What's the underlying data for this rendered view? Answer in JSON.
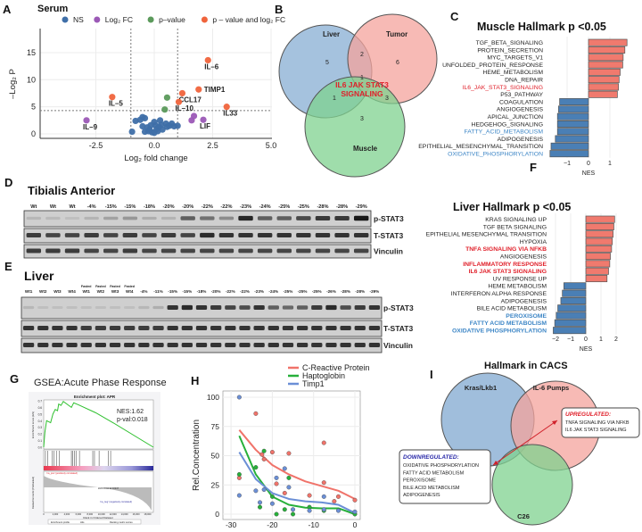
{
  "panels": {
    "A": "A",
    "B": "B",
    "C": "C",
    "D": "D",
    "E": "E",
    "F": "F",
    "G": "G",
    "H": "H",
    "I": "I"
  },
  "colors": {
    "ns": "#3f6fa8",
    "log2fc": "#9b59b6",
    "pvalue": "#5b9a5b",
    "both": "#f0643c",
    "up": "#f07a6e",
    "down": "#4a7fb5",
    "red_text": "#e0202a",
    "blue_text": "#3d86c6"
  },
  "chart_data": [
    {
      "id": "A",
      "type": "scatter",
      "title": "Serum",
      "xlabel": "Log₂ fold change",
      "ylabel": "–Log₂ P",
      "xlim": [
        -4.2,
        5.0
      ],
      "ylim": [
        -0.5,
        19
      ],
      "xticks": [
        "-2.5",
        "0.0",
        "2.5",
        "5.0"
      ],
      "xtick_values": [
        -2.5,
        0,
        2.5,
        5
      ],
      "yticks": [
        "0",
        "5",
        "10",
        "15"
      ],
      "ytick_values": [
        0,
        5,
        10,
        15
      ],
      "thresholds": {
        "x": [
          -1,
          1
        ],
        "y": 4.3
      },
      "legend": [
        {
          "key": "ns",
          "label": "NS"
        },
        {
          "key": "log2fc",
          "label": "Log₂ FC"
        },
        {
          "key": "pvalue",
          "label": "p–value"
        },
        {
          "key": "both",
          "label": "p – value and log₂ FC"
        }
      ],
      "points": [
        {
          "x": 2.3,
          "y": 13.6,
          "g": "both",
          "label": "IL–6"
        },
        {
          "x": 1.9,
          "y": 8.2,
          "g": "both",
          "label": "TIMP1"
        },
        {
          "x": 1.2,
          "y": 7.5,
          "g": "both",
          "label": "CCL17"
        },
        {
          "x": 1.05,
          "y": 5.9,
          "g": "both",
          "label": "IL–10"
        },
        {
          "x": -1.8,
          "y": 6.8,
          "g": "both",
          "label": "IL–5"
        },
        {
          "x": 3.1,
          "y": 5.0,
          "g": "both",
          "label": "IL33"
        },
        {
          "x": 0.55,
          "y": 6.7,
          "g": "pvalue"
        },
        {
          "x": 0.45,
          "y": 4.5,
          "g": "pvalue"
        },
        {
          "x": -2.9,
          "y": 2.5,
          "g": "log2fc",
          "label": "IL–9"
        },
        {
          "x": 2.1,
          "y": 2.6,
          "g": "log2fc",
          "label": "LIF"
        },
        {
          "x": 1.7,
          "y": 3.3,
          "g": "log2fc"
        },
        {
          "x": 1.6,
          "y": 2.5,
          "g": "log2fc"
        },
        {
          "x": -0.95,
          "y": 0.4,
          "g": "ns"
        },
        {
          "x": -0.8,
          "y": 2.4,
          "g": "ns"
        },
        {
          "x": -0.6,
          "y": 2.6,
          "g": "ns"
        },
        {
          "x": -0.5,
          "y": 3.1,
          "g": "ns"
        },
        {
          "x": -0.4,
          "y": 2.9,
          "g": "ns"
        },
        {
          "x": -0.5,
          "y": 1.4,
          "g": "ns"
        },
        {
          "x": -0.3,
          "y": 1.2,
          "g": "ns"
        },
        {
          "x": -0.4,
          "y": 0.4,
          "g": "ns"
        },
        {
          "x": -0.2,
          "y": 0.8,
          "g": "ns"
        },
        {
          "x": -0.1,
          "y": 0.3,
          "g": "ns"
        },
        {
          "x": 0.0,
          "y": 2.2,
          "g": "ns"
        },
        {
          "x": 0.05,
          "y": 1.6,
          "g": "ns"
        },
        {
          "x": 0.1,
          "y": 0.9,
          "g": "ns"
        },
        {
          "x": 0.0,
          "y": 0.2,
          "g": "ns"
        },
        {
          "x": 0.2,
          "y": 1.3,
          "g": "ns"
        },
        {
          "x": 0.25,
          "y": 2.5,
          "g": "ns"
        },
        {
          "x": 0.3,
          "y": 1.7,
          "g": "ns"
        },
        {
          "x": 0.35,
          "y": 0.8,
          "g": "ns"
        },
        {
          "x": 0.5,
          "y": 1.9,
          "g": "ns"
        },
        {
          "x": 0.55,
          "y": 1.3,
          "g": "ns"
        },
        {
          "x": 0.65,
          "y": 1.5,
          "g": "ns"
        },
        {
          "x": 0.75,
          "y": 1.9,
          "g": "ns"
        },
        {
          "x": 0.85,
          "y": 1.4,
          "g": "ns"
        },
        {
          "x": 1.0,
          "y": 1.5,
          "g": "ns"
        },
        {
          "x": -0.15,
          "y": 1.6,
          "g": "ns"
        },
        {
          "x": 0.15,
          "y": 0.5,
          "g": "ns"
        },
        {
          "x": -0.25,
          "y": 0.5,
          "g": "ns"
        }
      ]
    },
    {
      "id": "C",
      "type": "bar",
      "title": "Muscle Hallmark p <0.05",
      "xlabel": "NES",
      "xticks": [
        "−1",
        "0",
        "1"
      ],
      "xtick_values": [
        -1,
        0,
        1
      ],
      "categories": [
        "TGF_BETA_SIGNALING",
        "PROTEIN_SECRETION",
        "MYC_TARGETS_V1",
        "UNFOLDED_PROTEIN_RESPONSE",
        "HEME_METABOLISM",
        "DNA_REPAIR",
        "IL6_JAK_STAT3_SIGNALING",
        "P53_PATHWAY",
        "COAGULATION",
        "ANGIOGENESIS",
        "APICAL_JUNCTION",
        "HEDGEHOG_SIGNALING",
        "FATTY_ACID_METABOLISM",
        "ADIPOGENESIS",
        "EPITHELIAL_MESENCHYMAL_TRANSITION",
        "OXIDATIVE_PHOSPHORYLATION"
      ],
      "values": [
        1.8,
        1.7,
        1.62,
        1.6,
        1.48,
        1.43,
        1.4,
        1.35,
        -1.35,
        -1.4,
        -1.45,
        -1.45,
        -1.45,
        -1.55,
        -1.75,
        -1.8
      ],
      "highlight": [
        "",
        "",
        "",
        "",
        "",
        "",
        "red",
        "",
        "",
        "",
        "",
        "",
        "blue",
        "",
        "",
        "blue"
      ]
    },
    {
      "id": "F",
      "type": "bar",
      "title": "Liver Hallmark p <0.05",
      "xlabel": "NES",
      "xticks": [
        "−2",
        "−1",
        "0",
        "1",
        "2"
      ],
      "xtick_values": [
        -2,
        -1,
        0,
        1,
        2
      ],
      "categories": [
        "KRAS SIGNALING UP",
        "TGF BETA SIGNALING",
        "EPITHELIAL MESENCHYMAL TRANSITION",
        "HYPOXIA",
        "TNFA SIGNALING VIA NFKB",
        "ANGIOGENESIS",
        "INFLAMMATORY RESPONSE",
        "IL6 JAK STAT3 SIGNALING",
        "UV RESPONSE UP",
        "HEME METABOLISM",
        "INTERFERON ALPHA RESPONSE",
        "ADIPOGENESIS",
        "BILE ACID METABOLISM",
        "PEROXISOME",
        "FATTY ACID METABOLISM",
        "OXIDATIVE PHOSPHORYLATION"
      ],
      "values": [
        1.9,
        1.85,
        1.8,
        1.75,
        1.7,
        1.62,
        1.58,
        1.5,
        1.4,
        -1.45,
        -1.55,
        -1.65,
        -1.85,
        -1.95,
        -2.05,
        -2.15
      ],
      "highlight": [
        "",
        "",
        "",
        "",
        "red",
        "",
        "red",
        "red",
        "",
        "",
        "",
        "",
        "",
        "blue",
        "blue",
        "blue"
      ]
    },
    {
      "id": "H",
      "type": "scatter",
      "xlabel": "",
      "ylabel": "Rel.Concentration",
      "xlim": [
        -31,
        1
      ],
      "ylim": [
        -4,
        106
      ],
      "xticks": [
        "-30",
        "-20",
        "-10",
        "0"
      ],
      "xtick_values": [
        -30,
        -20,
        -10,
        0
      ],
      "yticks": [
        "0",
        "25",
        "50",
        "75",
        "100"
      ],
      "ytick_values": [
        0,
        25,
        50,
        75,
        100
      ],
      "fit_x": [
        -28,
        -24,
        -20,
        -16,
        -12,
        -8,
        -4,
        0
      ],
      "series": [
        {
          "name": "C-Reactive Protein",
          "color": "#f0736a",
          "points": [
            [
              -28,
              31
            ],
            [
              -24,
              86
            ],
            [
              -22.5,
              51
            ],
            [
              -22,
              47
            ],
            [
              -20,
              53
            ],
            [
              -19,
              26
            ],
            [
              -17,
              18
            ],
            [
              -16,
              52
            ],
            [
              -11,
              16
            ],
            [
              -7.5,
              61
            ],
            [
              -7.5,
              27
            ],
            [
              -5,
              11
            ],
            [
              -4,
              15
            ],
            [
              0,
              12
            ]
          ],
          "fit": [
            72,
            55,
            42,
            34,
            28,
            24,
            20,
            13
          ]
        },
        {
          "name": "Haptoglobin",
          "color": "#27b03a",
          "points": [
            [
              -28,
              34
            ],
            [
              -24,
              40
            ],
            [
              -22,
              54
            ],
            [
              -23,
              6
            ],
            [
              -20,
              15
            ],
            [
              -19,
              0
            ],
            [
              -17,
              4
            ],
            [
              -16,
              31
            ],
            [
              -15,
              0
            ],
            [
              -11,
              6
            ],
            [
              -7.5,
              3
            ],
            [
              0,
              0
            ]
          ],
          "fit": [
            67,
            34,
            15,
            8,
            5.5,
            5,
            5,
            0
          ]
        },
        {
          "name": "Timp1",
          "color": "#6b8fd6",
          "points": [
            [
              -28,
              100
            ],
            [
              -28,
              16
            ],
            [
              -24,
              20
            ],
            [
              -22,
              21
            ],
            [
              -23,
              10
            ],
            [
              -20,
              9
            ],
            [
              -19,
              31
            ],
            [
              -17,
              39
            ],
            [
              -16,
              23
            ],
            [
              -15,
              4
            ],
            [
              -11,
              3
            ],
            [
              -7.5,
              15
            ],
            [
              -7.5,
              4
            ],
            [
              -4,
              3
            ],
            [
              0,
              2
            ]
          ],
          "fit": [
            53,
            30,
            18,
            13,
            11,
            10,
            8,
            1
          ]
        }
      ]
    },
    {
      "id": "G",
      "type": "line",
      "title": "GSEA:Acute Phase Response",
      "plot_title": "Enrichment plot: APR",
      "annotation": [
        "NES:1.62",
        "p-val:0.018"
      ],
      "ylabel": "Enrichment score (ES)",
      "yticks": [
        "0.0",
        "0.1",
        "0.2",
        "0.3",
        "0.4",
        "0.5",
        "0.6",
        "0.7"
      ],
      "xlabel": "Rank in Ordered Dataset",
      "xticks": [
        "0",
        "2,000",
        "4,000",
        "6,000",
        "8,000",
        "10,000",
        "12,000",
        "14,000",
        "16,000",
        "18,000"
      ],
      "es_curve": [
        [
          0,
          0
        ],
        [
          200,
          0.22
        ],
        [
          500,
          0.4
        ],
        [
          1200,
          0.37
        ],
        [
          1600,
          0.5
        ],
        [
          2000,
          0.57
        ],
        [
          2400,
          0.55
        ],
        [
          2600,
          0.65
        ],
        [
          3000,
          0.63
        ],
        [
          3400,
          0.69
        ],
        [
          4800,
          0.6
        ],
        [
          5200,
          0.67
        ],
        [
          6000,
          0.64
        ],
        [
          9000,
          0.52
        ],
        [
          12000,
          0.37
        ],
        [
          19000,
          0
        ]
      ],
      "hits": [
        300,
        700,
        1500,
        1800,
        2200,
        2700,
        4800,
        5000,
        5300,
        5600,
        6200,
        8500,
        8800,
        9600,
        11200,
        11600
      ],
      "ranked_label": "Ranked list metric (PreRanked)",
      "pos_label": "'na_pos' (positively correlated)",
      "neg_label": "'na_neg' (negatively correlated)",
      "zero_label": "Zero cross at 10247",
      "legend": [
        "Enrichment profile",
        "Hits",
        "Ranking metric scores"
      ]
    }
  ],
  "serum": {
    "title": "Serum"
  },
  "venn_b": {
    "sets": [
      "Liver",
      "Tumor",
      "Muscle"
    ],
    "counts": {
      "liver_only": "5",
      "tumor_only": "6",
      "muscle_only": "3",
      "liver_tumor": "2",
      "liver_muscle": "1",
      "tumor_muscle": "3",
      "all": "1"
    },
    "highlight": [
      "IL6 JAK STAT3",
      "SIGNALING"
    ]
  },
  "blot_d": {
    "title": "Tibialis Anterior",
    "lanes": [
      "Wt",
      "Wt",
      "Wt",
      "-4%",
      "-15%",
      "-15%",
      "-18%",
      "-20%",
      "-20%",
      "-22%",
      "-22%",
      "-23%",
      "-24%",
      "-25%",
      "-25%",
      "-28%",
      "-28%",
      "-29%"
    ],
    "rows": [
      {
        "label": "p-STAT3",
        "intensity": [
          0.1,
          0.08,
          0.05,
          0.12,
          0.22,
          0.28,
          0.15,
          0.12,
          0.6,
          0.5,
          0.35,
          0.92,
          0.6,
          0.6,
          0.72,
          0.82,
          0.82,
          1.0
        ]
      },
      {
        "label": "T-STAT3",
        "intensity": [
          0.8,
          0.75,
          0.75,
          0.8,
          0.75,
          0.8,
          0.75,
          0.8,
          0.75,
          0.9,
          0.85,
          0.85,
          0.85,
          0.85,
          0.85,
          0.85,
          0.85,
          0.85
        ]
      },
      {
        "label": "Vinculin",
        "intensity": [
          0.8,
          0.8,
          0.8,
          0.75,
          0.75,
          0.8,
          0.75,
          0.75,
          0.75,
          0.75,
          0.75,
          0.75,
          0.75,
          0.75,
          0.75,
          0.75,
          0.75,
          0.75
        ]
      }
    ]
  },
  "blot_e": {
    "title": "Liver",
    "fasted_label": "Fasted",
    "fasted_lanes": [
      4,
      5,
      6,
      7
    ],
    "lanes": [
      "Wt1",
      "Wt2",
      "Wt3",
      "Wt4",
      "Wt1",
      "Wt2",
      "Wt3",
      "Wt4",
      "-4%",
      "-11%",
      "-15%",
      "-15%",
      "-18%",
      "-20%",
      "-22%",
      "-22%",
      "-23%",
      "-24%",
      "-25%",
      "-25%",
      "-25%",
      "-26%",
      "-28%",
      "-28%",
      "-29%"
    ],
    "rows": [
      {
        "label": "p-STAT3",
        "intensity": [
          0.1,
          0.05,
          0.05,
          0.05,
          0.05,
          0.05,
          0.05,
          0.05,
          0.1,
          0.15,
          0.85,
          0.9,
          0.85,
          0.8,
          0.75,
          0.7,
          0.85,
          0.6,
          0.55,
          0.6,
          0.8,
          0.9,
          0.7,
          0.8,
          0.85
        ]
      },
      {
        "label": "T-STAT3",
        "intensity": [
          0.85,
          0.85,
          0.85,
          0.85,
          0.8,
          0.8,
          0.8,
          0.8,
          0.8,
          0.8,
          0.85,
          0.85,
          0.85,
          0.85,
          0.85,
          0.85,
          0.85,
          0.85,
          0.85,
          0.85,
          0.85,
          0.85,
          0.85,
          0.85,
          0.85
        ]
      },
      {
        "label": "Vinculin",
        "intensity": [
          0.85,
          0.85,
          0.85,
          0.85,
          0.85,
          0.85,
          0.85,
          0.85,
          0.85,
          0.85,
          0.85,
          0.85,
          0.85,
          0.85,
          0.85,
          0.85,
          0.85,
          0.85,
          0.85,
          0.85,
          0.85,
          0.85,
          0.85,
          0.85,
          0.85
        ]
      }
    ]
  },
  "venn_i": {
    "title": "Hallmark in CACS",
    "sets": [
      "Kras/Lkb1",
      "IL-6 Pumps",
      "C26"
    ],
    "up_title": "UPREGULATED:",
    "up_items": [
      "TNFA SIGNALING VIA NFKB",
      "IL6 JAK STAT3 SIGNALING"
    ],
    "down_title": "DOWNREGULATED:",
    "down_items": [
      "OXIDATIVE PHOSPHORYLATION",
      "FATTY ACID METABOLISM",
      "PEROXISOME",
      "BILE ACID METABOLISM",
      "ADIPOGENESIS"
    ]
  }
}
